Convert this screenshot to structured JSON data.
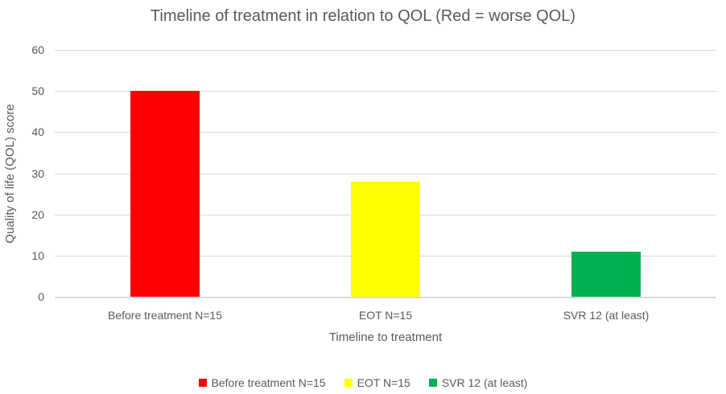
{
  "colors": {
    "background": "#ffffff",
    "text": "#595959",
    "gridline": "#d9d9d9",
    "axis_line": "#d9d9d9"
  },
  "chart_data": {
    "type": "bar",
    "title": "Timeline of treatment in relation to QOL (Red = worse QOL)",
    "xlabel": "Timeline to treatment",
    "ylabel": "Quality of life (QOL) score",
    "categories": [
      "Before treatment N=15",
      "EOT N=15",
      "SVR 12 (at least)"
    ],
    "values": [
      50,
      28,
      11
    ],
    "bar_colors": [
      "#ff0000",
      "#ffff00",
      "#00b050"
    ],
    "ylim": [
      0,
      60
    ],
    "ytick_step": 10,
    "grid": "horizontal",
    "legend": {
      "position": "bottom",
      "entries": [
        {
          "label": "Before treatment N=15",
          "color": "#ff0000"
        },
        {
          "label": "EOT N=15",
          "color": "#ffff00"
        },
        {
          "label": "SVR 12 (at least)",
          "color": "#00b050"
        }
      ]
    }
  }
}
